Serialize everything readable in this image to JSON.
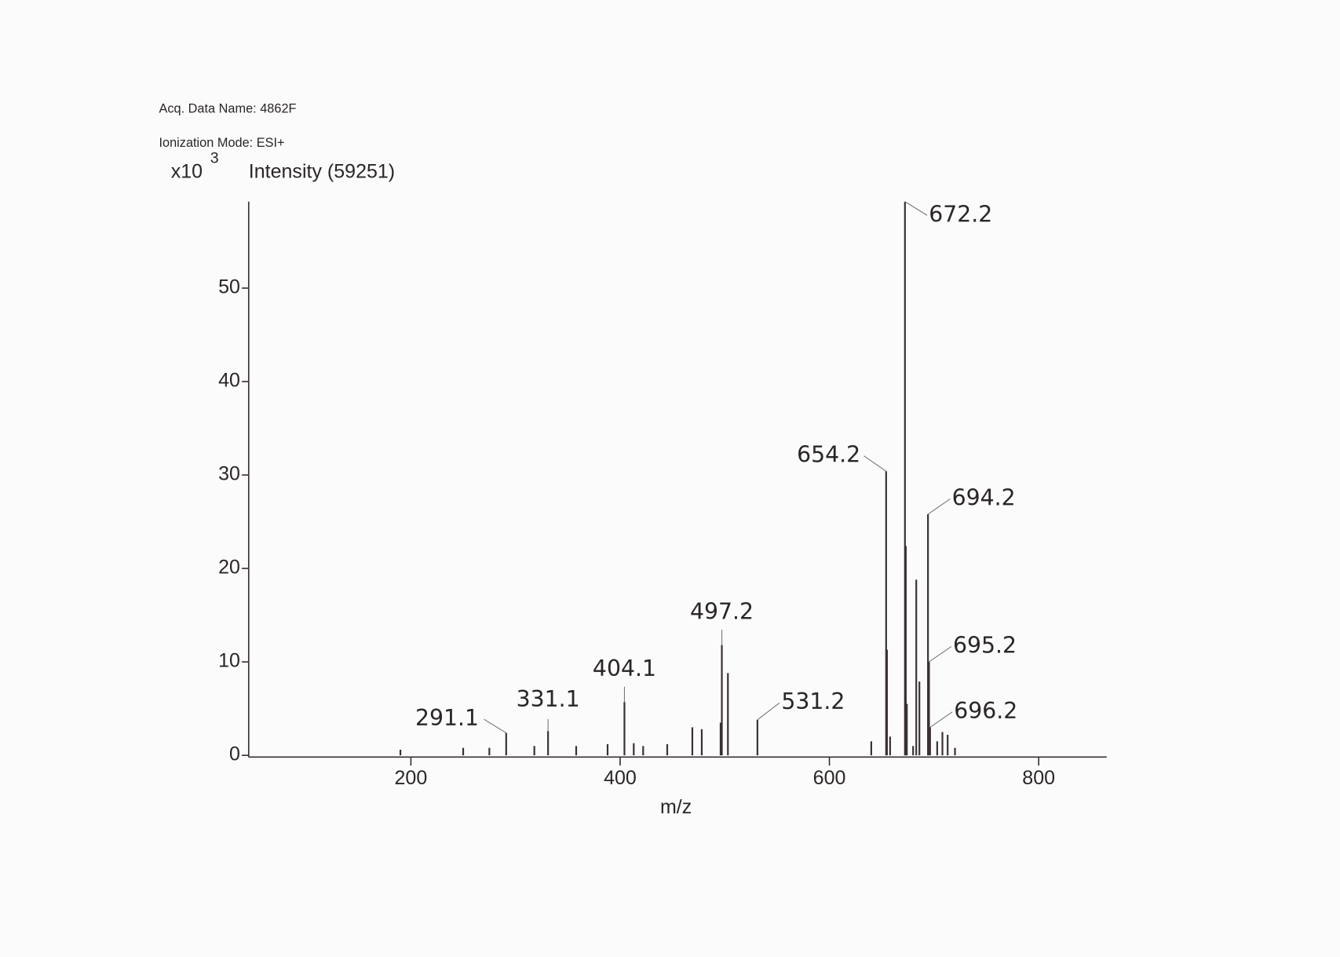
{
  "chart_data": {
    "type": "stem",
    "title": "Acq. Data Name: 4862F",
    "subtitle": "Ionization Mode: ESI+",
    "y_scale_base": "x10",
    "y_scale_exponent": "3",
    "y_label": "Intensity (59251)",
    "x_label": "m/z",
    "color": "#3a3034",
    "xlim": [
      45,
      865
    ],
    "ylim": [
      0,
      59.251
    ],
    "xticks": [
      200,
      400,
      600,
      800
    ],
    "yticks": [
      0,
      10,
      20,
      30,
      40,
      50
    ],
    "annotated_peaks": {
      "x": [
        291.1,
        331.1,
        404.1,
        497.2,
        531.2,
        654.2,
        672.2,
        694.2,
        695.2,
        696.2
      ],
      "values": [
        2.4,
        2.6,
        5.7,
        11.8,
        3.8,
        30.4,
        59.251,
        25.8,
        10.0,
        3.0
      ]
    },
    "peaks": {
      "x": [
        190,
        250,
        275,
        318,
        358,
        388,
        413,
        422,
        445,
        469,
        478,
        496,
        503,
        640,
        655,
        658,
        673,
        674,
        680,
        683,
        686,
        703,
        708,
        713,
        720
      ],
      "values": [
        0.6,
        0.8,
        0.8,
        1.0,
        1.0,
        1.2,
        1.3,
        1.0,
        1.2,
        3.0,
        2.8,
        3.5,
        8.8,
        1.5,
        11.3,
        2.0,
        22.4,
        5.5,
        1.0,
        18.8,
        7.9,
        1.5,
        2.5,
        2.2,
        0.8
      ]
    }
  }
}
